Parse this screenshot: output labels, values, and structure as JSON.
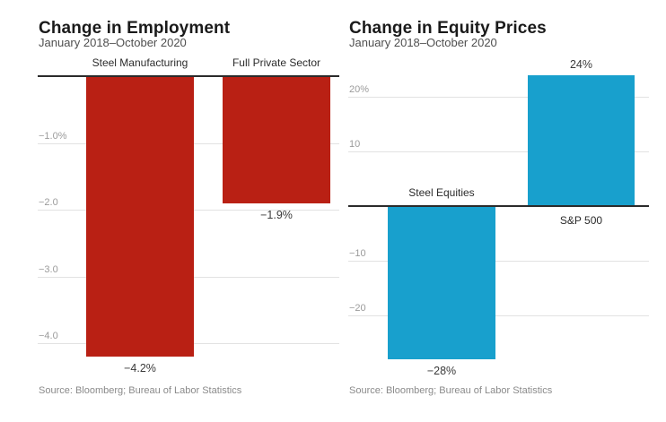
{
  "colors": {
    "background": "#ffffff",
    "title_text": "#1a1a1a",
    "subtitle_text": "#4f4f4f",
    "gridline": "#e2e2e2",
    "zero_axis": "#2b2b2b",
    "tick_label": "#9b9b9b",
    "category_label": "#2b2b2b",
    "value_label": "#3a3a3a",
    "source_text": "#8a8a8a",
    "employment_bar": "#b92014",
    "equity_bar": "#18a0cd"
  },
  "chart_data": [
    {
      "type": "bar",
      "title": "Change in Employment",
      "subtitle": "January 2018–October 2020",
      "source": "Source: Bloomberg; Bureau of Labor Statistics",
      "categories": [
        "Steel Manufacturing",
        "Full Private Sector"
      ],
      "values": [
        -4.2,
        -1.9
      ],
      "value_labels": [
        "−4.2%",
        "−1.9%"
      ],
      "bar_color": "#b92014",
      "xlabel": "",
      "ylabel": "",
      "ylim": [
        -4.4,
        0
      ],
      "grid": true,
      "legend": "none",
      "yticks": [
        {
          "value": -1.0,
          "label": "−1.0%"
        },
        {
          "value": -2.0,
          "label": "−2.0"
        },
        {
          "value": -3.0,
          "label": "−3.0"
        },
        {
          "value": -4.0,
          "label": "−4.0"
        }
      ]
    },
    {
      "type": "bar",
      "title": "Change in Equity Prices",
      "subtitle": "January 2018–October 2020",
      "source": "Source: Bloomberg; Bureau of Labor Statistics",
      "categories": [
        "Steel Equities",
        "S&P 500"
      ],
      "values": [
        -28,
        24
      ],
      "value_labels": [
        "−28%",
        "24%"
      ],
      "bar_color": "#18a0cd",
      "xlabel": "",
      "ylabel": "",
      "ylim": [
        -31,
        24
      ],
      "grid": true,
      "legend": "none",
      "yticks": [
        {
          "value": 20,
          "label": "20%"
        },
        {
          "value": 10,
          "label": "10"
        },
        {
          "value": -10,
          "label": "−10"
        },
        {
          "value": -20,
          "label": "−20"
        }
      ]
    }
  ]
}
